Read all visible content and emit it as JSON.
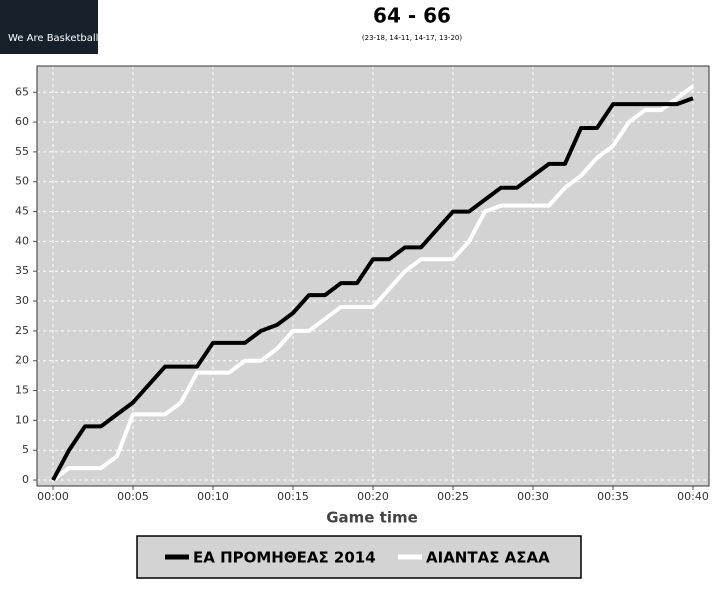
{
  "logo": {
    "text": "We Are Basketball"
  },
  "chart_data": {
    "type": "line",
    "title": "64 - 66",
    "subtitle": "(23-18, 14-11, 14-17, 13-20)",
    "xlabel": "Game time",
    "x": [
      0,
      1,
      2,
      3,
      4,
      5,
      6,
      7,
      8,
      9,
      10,
      11,
      12,
      13,
      14,
      15,
      16,
      17,
      18,
      19,
      20,
      21,
      22,
      23,
      24,
      25,
      26,
      27,
      28,
      29,
      30,
      31,
      32,
      33,
      34,
      35,
      36,
      37,
      38,
      39,
      40
    ],
    "series": [
      {
        "name": "ΕΑ ΠΡΟΜΗΘΕΑΣ 2014",
        "color": "#000000",
        "values": [
          0,
          5,
          9,
          9,
          11,
          13,
          16,
          19,
          19,
          19,
          23,
          23,
          23,
          25,
          26,
          28,
          31,
          31,
          33,
          33,
          37,
          37,
          39,
          39,
          42,
          45,
          45,
          47,
          49,
          49,
          51,
          53,
          53,
          59,
          59,
          63,
          63,
          63,
          63,
          63,
          64
        ]
      },
      {
        "name": "ΑΙΑΝΤΑΣ ΑΣΑΑ",
        "color": "#ffffff",
        "values": [
          0,
          2,
          2,
          2,
          4,
          11,
          11,
          11,
          13,
          18,
          18,
          18,
          20,
          20,
          22,
          25,
          25,
          27,
          29,
          29,
          29,
          32,
          35,
          37,
          37,
          37,
          40,
          45,
          46,
          46,
          46,
          46,
          49,
          51,
          54,
          56,
          60,
          62,
          62,
          64,
          66
        ]
      }
    ],
    "xlim": [
      -1,
      41
    ],
    "xticks": [
      {
        "value": 0,
        "label": "00:00"
      },
      {
        "value": 5,
        "label": "00:05"
      },
      {
        "value": 10,
        "label": "00:10"
      },
      {
        "value": 15,
        "label": "00:15"
      },
      {
        "value": 20,
        "label": "00:20"
      },
      {
        "value": 25,
        "label": "00:25"
      },
      {
        "value": 30,
        "label": "00:30"
      },
      {
        "value": 35,
        "label": "00:35"
      },
      {
        "value": 40,
        "label": "00:40"
      }
    ],
    "ylim": [
      -1,
      69.4
    ],
    "yticks": [
      0,
      5,
      10,
      15,
      20,
      25,
      30,
      35,
      40,
      45,
      50,
      55,
      60,
      65
    ],
    "grid": true,
    "background": "#d3d3d3"
  }
}
